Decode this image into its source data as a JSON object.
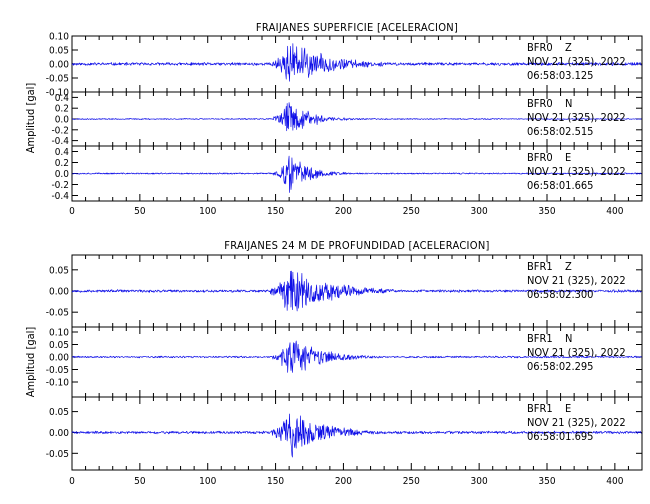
{
  "chart_data": [
    {
      "type": "line",
      "title": "FRAIJANES SUPERFICIE [ACELERACION]",
      "ylabel": "Amplitud [gal]",
      "xlabel": "",
      "xlim": [
        0,
        420
      ],
      "xticks": [
        0,
        50,
        100,
        150,
        200,
        250,
        300,
        350,
        400
      ],
      "x_tick_labels": [
        "0",
        "50",
        "100",
        "150",
        "200",
        "250",
        "300",
        "350",
        "400"
      ],
      "grid": false,
      "line_color": "#1010e8",
      "series": [
        {
          "station": "BFR0",
          "component": "Z",
          "date": "NOV 21 (325), 2022",
          "time": "06:58:03.125",
          "ylim": [
            -0.1,
            0.1
          ],
          "yticks": [
            -0.1,
            -0.05,
            0.0,
            0.05,
            0.1
          ],
          "y_tick_labels": [
            "-0.10",
            "-0.05",
            "0.00",
            "0.05",
            "0.10"
          ],
          "noise_level": 0.006,
          "event_start": 146,
          "peak_time": 160,
          "peak_amplitude": 0.095,
          "coda_decay": 28,
          "seed": 11
        },
        {
          "station": "BFR0",
          "component": "N",
          "date": "NOV 21 (325), 2022",
          "time": "06:58:02.515",
          "ylim": [
            -0.5,
            0.5
          ],
          "yticks": [
            -0.4,
            -0.2,
            0.0,
            0.2,
            0.4
          ],
          "y_tick_labels": [
            "-0.4",
            "-0.2",
            "0.0",
            "0.2",
            "0.4"
          ],
          "noise_level": 0.012,
          "event_start": 148,
          "peak_time": 160,
          "peak_amplitude": 0.42,
          "coda_decay": 16,
          "seed": 23
        },
        {
          "station": "BFR0",
          "component": "E",
          "date": "NOV 21 (325), 2022",
          "time": "06:58:01.665",
          "ylim": [
            -0.5,
            0.5
          ],
          "yticks": [
            -0.4,
            -0.2,
            0.0,
            0.2,
            0.4
          ],
          "y_tick_labels": [
            "-0.4",
            "-0.2",
            "0.0",
            "0.2",
            "0.4"
          ],
          "noise_level": 0.014,
          "event_start": 148,
          "peak_time": 160,
          "peak_amplitude": 0.4,
          "coda_decay": 15,
          "seed": 37
        }
      ]
    },
    {
      "type": "line",
      "title": "FRAIJANES 24 M DE PROFUNDIDAD [ACELERACION]",
      "ylabel": "Amplitud [gal]",
      "xlabel": "",
      "xlim": [
        0,
        420
      ],
      "xticks": [
        0,
        50,
        100,
        150,
        200,
        250,
        300,
        350,
        400
      ],
      "x_tick_labels": [
        "0",
        "50",
        "100",
        "150",
        "200",
        "250",
        "300",
        "350",
        "400"
      ],
      "grid": false,
      "line_color": "#1010e8",
      "series": [
        {
          "station": "BFR1",
          "component": "Z",
          "date": "NOV 21 (325), 2022",
          "time": "06:58:02.300",
          "ylim": [
            -0.085,
            0.085
          ],
          "yticks": [
            -0.05,
            0.0,
            0.05
          ],
          "y_tick_labels": [
            "-0.05",
            "0.00",
            "0.05"
          ],
          "noise_level": 0.0035,
          "event_start": 146,
          "peak_time": 162,
          "peak_amplitude": 0.08,
          "coda_decay": 26,
          "seed": 53
        },
        {
          "station": "BFR1",
          "component": "N",
          "date": "NOV 21 (325), 2022",
          "time": "06:58:02.295",
          "ylim": [
            -0.16,
            0.12
          ],
          "yticks": [
            -0.1,
            -0.05,
            0.0,
            0.05,
            0.1
          ],
          "y_tick_labels": [
            "-0.10",
            "-0.05",
            "0.00",
            "0.05",
            "0.10"
          ],
          "noise_level": 0.004,
          "event_start": 148,
          "peak_time": 160,
          "peak_amplitude": 0.1,
          "coda_decay": 22,
          "seed": 71
        },
        {
          "station": "BFR1",
          "component": "E",
          "date": "NOV 21 (325), 2022",
          "time": "06:58:01.695",
          "ylim": [
            -0.09,
            0.085
          ],
          "yticks": [
            -0.05,
            0.0,
            0.05
          ],
          "y_tick_labels": [
            "-0.05",
            "0.00",
            "0.05"
          ],
          "noise_level": 0.0035,
          "event_start": 147,
          "peak_time": 160,
          "peak_amplitude": 0.08,
          "coda_decay": 22,
          "seed": 89
        }
      ]
    }
  ]
}
